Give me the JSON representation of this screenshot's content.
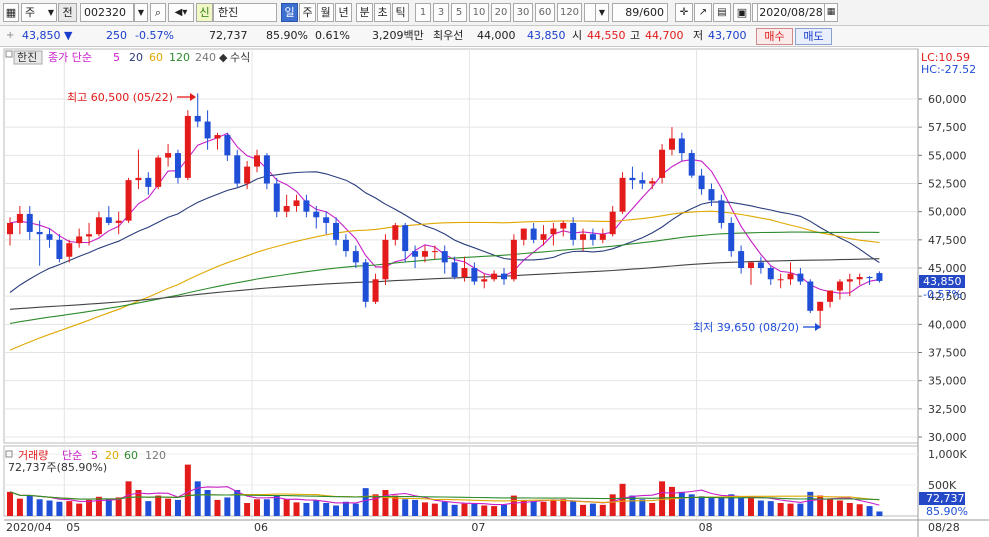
{
  "toolbar": {
    "market_label": "주",
    "prev_label": "전",
    "code_value": "002320",
    "shin_badge": "신",
    "stock_name": "한진",
    "periods": [
      "일",
      "주",
      "월",
      "년",
      "분",
      "초",
      "틱"
    ],
    "selected_period": "일",
    "intervals": [
      "1",
      "3",
      "5",
      "10",
      "20",
      "30",
      "60",
      "120"
    ],
    "count_value": "89/600",
    "date_value": "2020/08/28"
  },
  "infobar": {
    "price": "43,850",
    "change": "250",
    "change_pct": "-0.57%",
    "volume": "72,737",
    "volume_ratio": "85.90%",
    "turnover": "0.61%",
    "amount": "3,209백만",
    "best_bid_label": "최우선",
    "best_bid": "44,000",
    "best_ask": "43,850",
    "open_label": "시",
    "open": "44,550",
    "high_label": "고",
    "high": "44,700",
    "low_label": "저",
    "low": "43,700",
    "buy_label": "매수",
    "sell_label": "매도"
  },
  "price_panel": {
    "name_label": "한진",
    "ma_label": "종가 단순",
    "ma_periods": [
      "5",
      "20",
      "60",
      "120",
      "240"
    ],
    "formula_label": "수식",
    "lc_label": "LC:10.59",
    "hc_label": "HC:-27.52",
    "high_annotation": "최고 60,500 (05/22)",
    "low_annotation": "최저 39,650 (08/20)",
    "current_price_label": "43,850",
    "current_pct_label": "-0.57%"
  },
  "volume_panel": {
    "title_label": "거래량",
    "ma_label": "단순",
    "ma_periods": [
      "5",
      "20",
      "60",
      "120"
    ],
    "current_label": "72,737주(85.90%)",
    "current_tag": "72,737",
    "current_pct": "85.90%"
  },
  "colors": {
    "up": "#e31b1b",
    "down": "#1f4fd6",
    "ma5": "#c81fc8",
    "ma20": "#2a3d7c",
    "ma60": "#e0a800",
    "ma120": "#2e8b2e",
    "ma240": "#444444"
  },
  "chart_data": {
    "type": "candlestick",
    "price_axis": {
      "min": 30000,
      "max": 60000,
      "step": 2500,
      "ticks": [
        "60,000",
        "57,500",
        "55,000",
        "52,500",
        "50,000",
        "47,500",
        "45,000",
        "42,500",
        "40,000",
        "37,500",
        "35,000",
        "32,500",
        "30,000"
      ]
    },
    "volume_axis": {
      "ticks": [
        "1,000K",
        "500K"
      ]
    },
    "x_tick_labels": [
      {
        "label": "2020/04",
        "index": 0
      },
      {
        "label": "05",
        "index": 6
      },
      {
        "label": "06",
        "index": 25
      },
      {
        "label": "07",
        "index": 47
      },
      {
        "label": "08",
        "index": 70
      },
      {
        "label": "08/28",
        "index": 88
      }
    ],
    "candles": [
      [
        48000,
        49500,
        47000,
        49000,
        390
      ],
      [
        49000,
        50500,
        48000,
        49800,
        280
      ],
      [
        49800,
        50500,
        47500,
        48200,
        330
      ],
      [
        48200,
        49200,
        45200,
        48000,
        270
      ],
      [
        48000,
        48500,
        46800,
        47500,
        250
      ],
      [
        47500,
        48000,
        45500,
        45800,
        230
      ],
      [
        46000,
        47500,
        45500,
        47200,
        240
      ],
      [
        47200,
        48500,
        46800,
        47800,
        200
      ],
      [
        47800,
        49000,
        47000,
        48000,
        260
      ],
      [
        48000,
        50000,
        47800,
        49500,
        310
      ],
      [
        49500,
        50500,
        48800,
        49000,
        270
      ],
      [
        49000,
        50000,
        48000,
        49200,
        300
      ],
      [
        49200,
        53000,
        49000,
        52800,
        560
      ],
      [
        52800,
        55500,
        52000,
        53000,
        420
      ],
      [
        53000,
        53500,
        51500,
        52200,
        240
      ],
      [
        52200,
        55000,
        52000,
        54800,
        330
      ],
      [
        54800,
        56000,
        54000,
        55200,
        280
      ],
      [
        55200,
        55500,
        52500,
        53000,
        260
      ],
      [
        53000,
        59000,
        52800,
        58500,
        830
      ],
      [
        58500,
        60500,
        57500,
        58000,
        560
      ],
      [
        58000,
        59000,
        55500,
        56500,
        420
      ],
      [
        56500,
        57000,
        55500,
        56800,
        260
      ],
      [
        56800,
        57000,
        54500,
        55000,
        300
      ],
      [
        55000,
        55500,
        52200,
        52500,
        420
      ],
      [
        52500,
        54500,
        52000,
        54000,
        210
      ],
      [
        54000,
        55500,
        53500,
        55000,
        270
      ],
      [
        55000,
        55200,
        52000,
        52500,
        270
      ],
      [
        52500,
        53000,
        49500,
        50000,
        330
      ],
      [
        50000,
        51500,
        49500,
        50500,
        270
      ],
      [
        50500,
        51500,
        50000,
        51000,
        220
      ],
      [
        51000,
        51500,
        49500,
        50000,
        210
      ],
      [
        50000,
        50500,
        48500,
        49500,
        250
      ],
      [
        49500,
        50000,
        48000,
        49000,
        210
      ],
      [
        49000,
        49500,
        47000,
        47500,
        170
      ],
      [
        47500,
        48000,
        46000,
        46500,
        230
      ],
      [
        46500,
        47000,
        45000,
        45500,
        200
      ],
      [
        45500,
        45800,
        41500,
        42000,
        450
      ],
      [
        42000,
        44500,
        41800,
        44000,
        350
      ],
      [
        44000,
        48000,
        43500,
        47500,
        420
      ],
      [
        47500,
        49000,
        47000,
        48800,
        330
      ],
      [
        48800,
        49000,
        45500,
        46500,
        270
      ],
      [
        46500,
        47000,
        45000,
        46000,
        260
      ],
      [
        46000,
        47000,
        45500,
        46500,
        220
      ],
      [
        46500,
        47000,
        45800,
        46500,
        200
      ],
      [
        46500,
        47000,
        44500,
        45500,
        230
      ],
      [
        45500,
        46000,
        44000,
        44200,
        180
      ],
      [
        44200,
        46000,
        43800,
        45000,
        200
      ],
      [
        45000,
        45500,
        43500,
        43800,
        210
      ],
      [
        43800,
        44500,
        43200,
        44000,
        170
      ],
      [
        44000,
        44800,
        43800,
        44500,
        160
      ],
      [
        44500,
        45000,
        43500,
        44000,
        180
      ],
      [
        44000,
        48000,
        43800,
        47500,
        330
      ],
      [
        47500,
        48500,
        47000,
        48500,
        260
      ],
      [
        48500,
        49000,
        47200,
        47500,
        240
      ],
      [
        47500,
        48800,
        47000,
        48000,
        230
      ],
      [
        48000,
        49000,
        47000,
        48500,
        250
      ],
      [
        48500,
        49200,
        47800,
        49000,
        270
      ],
      [
        49000,
        49500,
        47000,
        47500,
        240
      ],
      [
        47500,
        48500,
        46500,
        48000,
        180
      ],
      [
        48000,
        48500,
        47000,
        47500,
        200
      ],
      [
        47500,
        48500,
        47200,
        48000,
        180
      ],
      [
        48000,
        50500,
        47800,
        50000,
        350
      ],
      [
        50000,
        53500,
        49800,
        53000,
        520
      ],
      [
        53000,
        54000,
        52000,
        52800,
        330
      ],
      [
        52800,
        53500,
        52000,
        52500,
        270
      ],
      [
        52500,
        53000,
        52000,
        52700,
        210
      ],
      [
        53000,
        56000,
        52500,
        55500,
        560
      ],
      [
        55500,
        57500,
        55000,
        56500,
        470
      ],
      [
        56500,
        57000,
        54500,
        55200,
        390
      ],
      [
        55200,
        55500,
        53000,
        53200,
        350
      ],
      [
        53200,
        53800,
        51500,
        52000,
        320
      ],
      [
        52000,
        52500,
        50500,
        51000,
        290
      ],
      [
        51000,
        51500,
        48500,
        49000,
        310
      ],
      [
        49000,
        49500,
        46000,
        46500,
        350
      ],
      [
        46500,
        47000,
        44500,
        45000,
        300
      ],
      [
        45000,
        45500,
        43500,
        45500,
        290
      ],
      [
        45500,
        46000,
        44500,
        45000,
        250
      ],
      [
        45000,
        45200,
        43500,
        44000,
        240
      ],
      [
        44000,
        44500,
        43200,
        44000,
        210
      ],
      [
        44000,
        45500,
        43500,
        44500,
        200
      ],
      [
        44500,
        45000,
        43500,
        43800,
        200
      ],
      [
        43800,
        44000,
        41000,
        41200,
        390
      ],
      [
        41200,
        42000,
        39650,
        42000,
        330
      ],
      [
        42000,
        43000,
        41500,
        43000,
        270
      ],
      [
        43000,
        44000,
        42200,
        43800,
        250
      ],
      [
        43800,
        44500,
        42500,
        44000,
        210
      ],
      [
        44000,
        44500,
        43500,
        44200,
        190
      ],
      [
        44200,
        44300,
        43500,
        44100,
        160
      ],
      [
        44550,
        44700,
        43700,
        43850,
        73
      ]
    ]
  }
}
